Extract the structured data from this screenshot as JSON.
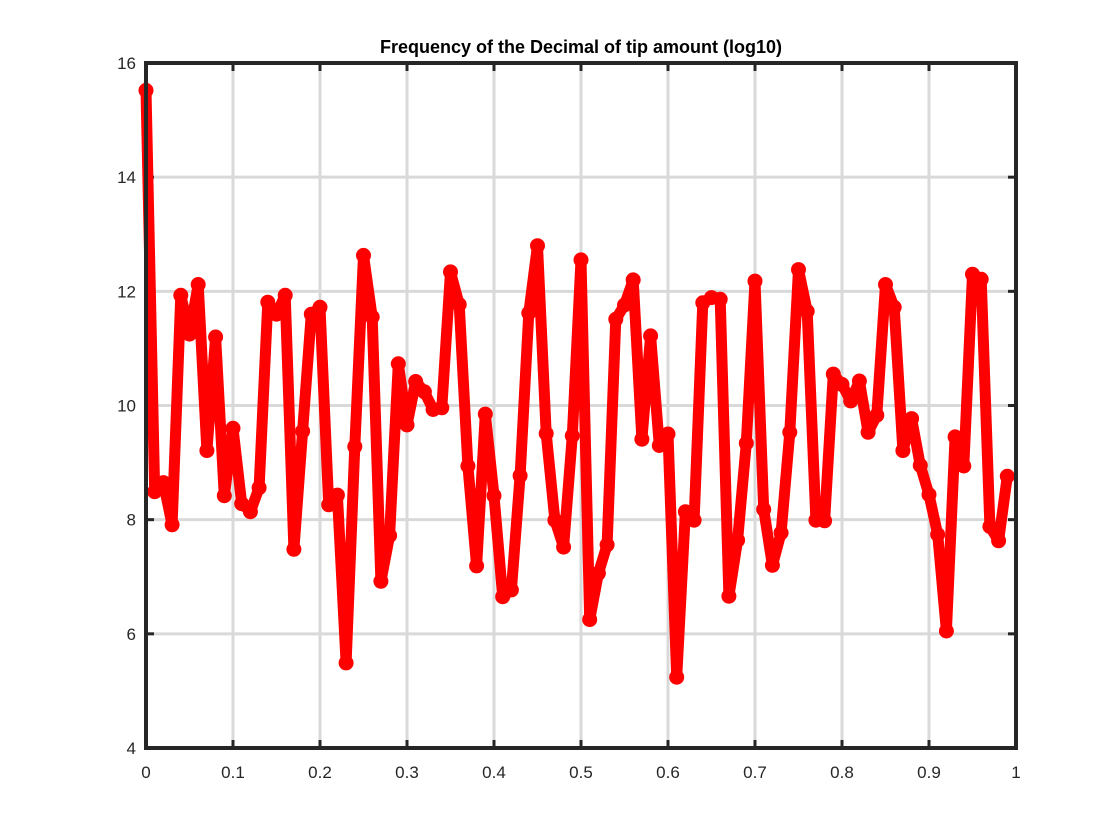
{
  "chart_data": {
    "type": "line",
    "title": "Frequency of the Decimal of tip amount (log10)",
    "xlabel": "",
    "ylabel": "",
    "xlim": [
      0,
      1
    ],
    "ylim": [
      4,
      16
    ],
    "x_ticks": [
      0,
      0.1,
      0.2,
      0.3,
      0.4,
      0.5,
      0.6,
      0.7,
      0.8,
      0.9,
      1
    ],
    "x_tick_labels": [
      "0",
      "0.1",
      "0.2",
      "0.3",
      "0.4",
      "0.5",
      "0.6",
      "0.7",
      "0.8",
      "0.9",
      "1"
    ],
    "y_ticks": [
      4,
      6,
      8,
      10,
      12,
      14,
      16
    ],
    "y_tick_labels": [
      "4",
      "6",
      "8",
      "10",
      "12",
      "14",
      "16"
    ],
    "grid": true,
    "series_color": "#ff0000",
    "marker": "circle",
    "x": [
      0.0,
      0.01,
      0.02,
      0.03,
      0.04,
      0.05,
      0.06,
      0.07,
      0.08,
      0.09,
      0.1,
      0.11,
      0.12,
      0.13,
      0.14,
      0.15,
      0.16,
      0.17,
      0.18,
      0.19,
      0.2,
      0.21,
      0.22,
      0.23,
      0.24,
      0.25,
      0.26,
      0.27,
      0.28,
      0.29,
      0.3,
      0.31,
      0.32,
      0.33,
      0.34,
      0.35,
      0.36,
      0.37,
      0.38,
      0.39,
      0.4,
      0.41,
      0.42,
      0.43,
      0.44,
      0.45,
      0.46,
      0.47,
      0.48,
      0.49,
      0.5,
      0.51,
      0.52,
      0.53,
      0.54,
      0.55,
      0.56,
      0.57,
      0.58,
      0.59,
      0.6,
      0.61,
      0.62,
      0.63,
      0.64,
      0.65,
      0.66,
      0.67,
      0.68,
      0.69,
      0.7,
      0.71,
      0.72,
      0.73,
      0.74,
      0.75,
      0.76,
      0.77,
      0.78,
      0.79,
      0.8,
      0.81,
      0.82,
      0.83,
      0.84,
      0.85,
      0.86,
      0.87,
      0.88,
      0.89,
      0.9,
      0.91,
      0.92,
      0.93,
      0.94,
      0.95,
      0.96,
      0.97,
      0.98,
      0.99
    ],
    "y": [
      15.52,
      8.49,
      8.65,
      7.91,
      11.93,
      11.25,
      12.12,
      9.21,
      11.2,
      8.42,
      9.6,
      8.28,
      8.14,
      8.56,
      11.81,
      11.6,
      11.93,
      7.48,
      9.55,
      11.6,
      11.72,
      8.26,
      8.43,
      5.49,
      9.28,
      12.63,
      11.55,
      6.92,
      7.72,
      10.73,
      9.66,
      10.42,
      10.24,
      9.93,
      9.96,
      12.34,
      11.77,
      8.94,
      7.19,
      9.85,
      8.42,
      6.65,
      6.77,
      8.77,
      11.62,
      12.8,
      9.51,
      7.99,
      7.52,
      9.47,
      12.55,
      6.25,
      7.06,
      7.56,
      11.51,
      11.76,
      12.2,
      9.41,
      11.22,
      9.3,
      9.5,
      5.24,
      8.14,
      7.99,
      11.8,
      11.89,
      11.86,
      6.66,
      7.64,
      9.34,
      12.18,
      8.18,
      7.2,
      7.77,
      9.53,
      12.38,
      11.65,
      7.99,
      7.98,
      10.55,
      10.37,
      10.08,
      10.43,
      9.53,
      9.83,
      12.12,
      11.72,
      9.21,
      9.77,
      8.95,
      8.44,
      7.74,
      6.05,
      9.45,
      8.94,
      12.3,
      12.21,
      7.88,
      7.63,
      8.76
    ]
  }
}
